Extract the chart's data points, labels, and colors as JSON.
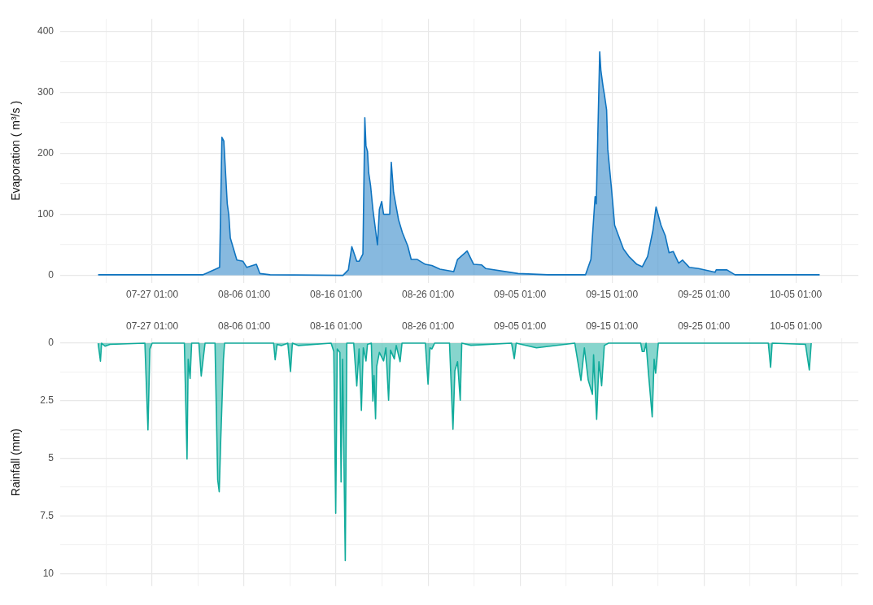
{
  "chart_data": [
    {
      "type": "area",
      "ylabel": "Evaporation ( m³/s )",
      "grid": true,
      "xlim": [
        "--07-17T01:00",
        "--10-11T20:00"
      ],
      "xticks": [
        {
          "value": "--07-22T01:00",
          "label": null
        },
        {
          "value": "--07-27T01:00",
          "label": "07-27 01:00"
        },
        {
          "value": "--08-01T01:00",
          "label": null
        },
        {
          "value": "--08-06T01:00",
          "label": "08-06 01:00"
        },
        {
          "value": "--08-11T01:00",
          "label": null
        },
        {
          "value": "--08-16T01:00",
          "label": "08-16 01:00"
        },
        {
          "value": "--08-21T01:00",
          "label": null
        },
        {
          "value": "--08-26T01:00",
          "label": "08-26 01:00"
        },
        {
          "value": "--08-31T01:00",
          "label": null
        },
        {
          "value": "--09-05T01:00",
          "label": "09-05 01:00"
        },
        {
          "value": "--09-10T01:00",
          "label": null
        },
        {
          "value": "--09-15T01:00",
          "label": "09-15 01:00"
        },
        {
          "value": "--09-20T01:00",
          "label": null
        },
        {
          "value": "--09-25T01:00",
          "label": "09-25 01:00"
        },
        {
          "value": "--09-30T01:00",
          "label": null
        },
        {
          "value": "--10-05T01:00",
          "label": "10-05 01:00"
        },
        {
          "value": "--10-10T01:00",
          "label": null
        }
      ],
      "ylim": [
        -12,
        420
      ],
      "yticks": [
        0,
        {
          "value": 50,
          "label": null
        },
        100,
        {
          "value": 150,
          "label": null
        },
        200,
        {
          "value": 250,
          "label": null
        },
        300,
        {
          "value": 350,
          "label": null
        },
        400
      ],
      "x": [
        "--07-21T04:00",
        "--07-28T04:00",
        "--07-29T12:00",
        "--08-01T14:00",
        "--08-03T02:00",
        "--08-03T09:00",
        "--08-03T15:00",
        "--08-03T20:00",
        "--08-04T05:00",
        "--08-04T09:00",
        "--08-04T13:00",
        "--08-05T06:00",
        "--08-05T22:00",
        "--08-06T08:00",
        "--08-07T09:00",
        "--08-07T18:00",
        "--08-08T21:00",
        "--08-16T19:00",
        "--08-17T09:00",
        "--08-17T18:00",
        "--08-18T07:00",
        "--08-18T13:00",
        "--08-18T23:00",
        "--08-19T04:00",
        "--08-19T07:00",
        "--08-19T11:00",
        "--08-19T14:00",
        "--08-19T19:00",
        "--08-20T01:00",
        "--08-20T13:00",
        "--08-20T18:00",
        "--08-21T00:00",
        "--08-21T05:00",
        "--08-21T21:00",
        "--08-22T01:00",
        "--08-22T07:00",
        "--08-22T20:00",
        "--08-23T06:00",
        "--08-23T20:00",
        "--08-24T05:00",
        "--08-24T21:00",
        "--08-25T18:00",
        "--08-26T11:00",
        "--08-27T08:00",
        "--08-28T20:00",
        "--08-29T06:00",
        "--08-30T07:00",
        "--08-31T00:00",
        "--08-31T21:00",
        "--09-01T08:00",
        "--09-04T20:00",
        "--09-08T02:00",
        "--09-12T04:00",
        "--09-12T18:00",
        "--09-13T05:00",
        "--09-13T08:00",
        "--09-13T17:00",
        "--09-13T20:00",
        "--09-14T02:00",
        "--09-14T05:00",
        "--09-14T11:00",
        "--09-14T14:00",
        "--09-14T23:00",
        "--09-15T08:00",
        "--09-15T18:00",
        "--09-16T07:00",
        "--09-16T21:00",
        "--09-17T18:00",
        "--09-18T08:00",
        "--09-18T22:00",
        "--09-19T12:00",
        "--09-19T20:00",
        "--09-20T09:00",
        "--09-20T20:00",
        "--09-21T06:00",
        "--09-21T17:00",
        "--09-22T07:00",
        "--09-22T17:00",
        "--09-23T11:00",
        "--09-24T11:00",
        "--09-26T06:00",
        "--09-26T09:00",
        "--09-27T13:00",
        "--09-28T10:00",
        "--10-07T15:00"
      ],
      "series": [
        {
          "color": "#0f74c0",
          "values": [
            1,
            1,
            1,
            1,
            11,
            13,
            226,
            220,
            117,
            99,
            61,
            25,
            23,
            13,
            18,
            3,
            1,
            0,
            9,
            47,
            23,
            23,
            35,
            258,
            212,
            203,
            168,
            147,
            108,
            50,
            108,
            121,
            100,
            100,
            185,
            136,
            91,
            70,
            48,
            26,
            26,
            18,
            16,
            10,
            6,
            26,
            40,
            18,
            17,
            11,
            3,
            1,
            1,
            26,
            129,
            117,
            366,
            336,
            308,
            297,
            271,
            207,
            147,
            82,
            65,
            43,
            31,
            18,
            14,
            31,
            74,
            112,
            82,
            65,
            37,
            39,
            20,
            25,
            13,
            11,
            5,
            9,
            9,
            1,
            1
          ]
        }
      ]
    },
    {
      "type": "area",
      "ylabel": "Rainfall (mm)",
      "grid": true,
      "xlim": [
        "--07-17T01:00",
        "--10-11T20:00"
      ],
      "xticks": [
        {
          "value": "--07-22T01:00",
          "label": null
        },
        {
          "value": "--07-27T01:00",
          "label": "07-27 01:00"
        },
        {
          "value": "--08-01T01:00",
          "label": null
        },
        {
          "value": "--08-06T01:00",
          "label": "08-06 01:00"
        },
        {
          "value": "--08-11T01:00",
          "label": null
        },
        {
          "value": "--08-16T01:00",
          "label": "08-16 01:00"
        },
        {
          "value": "--08-21T01:00",
          "label": null
        },
        {
          "value": "--08-26T01:00",
          "label": "08-26 01:00"
        },
        {
          "value": "--08-31T01:00",
          "label": null
        },
        {
          "value": "--09-05T01:00",
          "label": "09-05 01:00"
        },
        {
          "value": "--09-10T01:00",
          "label": null
        },
        {
          "value": "--09-15T01:00",
          "label": "09-15 01:00"
        },
        {
          "value": "--09-20T01:00",
          "label": null
        },
        {
          "value": "--09-25T01:00",
          "label": "09-25 01:00"
        },
        {
          "value": "--09-30T01:00",
          "label": null
        },
        {
          "value": "--10-05T01:00",
          "label": "10-05 01:00"
        },
        {
          "value": "--10-10T01:00",
          "label": null
        }
      ],
      "ylim": [
        10.55,
        -0.2
      ],
      "yticks": [
        0,
        {
          "value": 1.25,
          "label": null
        },
        2.5,
        {
          "value": 3.75,
          "label": null
        },
        5,
        {
          "value": 6.25,
          "label": null
        },
        7.5,
        {
          "value": 8.75,
          "label": null
        },
        10
      ],
      "x": [
        "--07-21T04:00",
        "--07-21T10:00",
        "--07-21T13:00",
        "--07-21T22:00",
        "--07-22T11:00",
        "--07-26T06:00",
        "--07-26T14:00",
        "--07-26T19:00",
        "--07-27T01:00",
        "--07-30T13:00",
        "--07-30T20:00",
        "--07-30T23:00",
        "--07-31T04:00",
        "--07-31T08:00",
        "--08-01T03:00",
        "--08-01T09:00",
        "--08-01T14:00",
        "--08-01T19:00",
        "--08-02T21:00",
        "--08-03T04:00",
        "--08-03T08:00",
        "--08-03T12:00",
        "--08-03T19:00",
        "--08-03T22:00",
        "--08-09T06:00",
        "--08-09T10:00",
        "--08-09T15:00",
        "--08-10T02:00",
        "--08-10T19:00",
        "--08-11T02:00",
        "--08-11T07:00",
        "--08-11T23:00",
        "--08-15T12:00",
        "--08-15T19:00",
        "--08-16T00:00",
        "--08-16T04:00",
        "--08-16T11:00",
        "--08-16T14:00",
        "--08-16T18:00",
        "--08-17T01:00",
        "--08-17T05:00",
        "--08-17T23:00",
        "--08-18T07:00",
        "--08-18T13:00",
        "--08-18T19:00",
        "--08-19T00:00",
        "--08-19T07:00",
        "--08-19T11:00",
        "--08-19T21:00",
        "--08-20T01:00",
        "--08-20T04:00",
        "--08-20T08:00",
        "--08-20T11:00",
        "--08-20T18:00",
        "--08-21T05:00",
        "--08-21T11:00",
        "--08-21T18:00",
        "--08-21T23:00",
        "--08-22T09:00",
        "--08-22T14:00",
        "--08-23T00:00",
        "--08-23T05:00",
        "--08-25T18:00",
        "--08-26T01:00",
        "--08-26T06:00",
        "--08-26T11:00",
        "--08-26T18:00",
        "--08-28T09:00",
        "--08-28T18:00",
        "--08-28T23:00",
        "--08-29T06:00",
        "--08-29T13:00",
        "--08-29T17:00",
        "--08-30T17:00",
        "--09-04T03:00",
        "--09-04T10:00",
        "--09-04T15:00",
        "--09-06T20:00",
        "--09-11T00:00",
        "--09-11T16:00",
        "--09-12T01:00",
        "--09-12T11:00",
        "--09-12T22:00",
        "--09-13T01:00",
        "--09-13T09:00",
        "--09-13T15:00",
        "--09-13T22:00",
        "--09-14T05:00",
        "--09-14T16:00",
        "--09-18T04:00",
        "--09-18T08:00",
        "--09-18T13:00",
        "--09-18T18:00",
        "--09-19T01:00",
        "--09-19T10:00",
        "--09-19T15:00",
        "--09-19T19:00",
        "--09-20T02:00",
        "--10-02T01:00",
        "--10-02T07:00",
        "--10-02T11:00",
        "--10-06T02:00",
        "--10-06T12:00",
        "--10-06T17:00"
      ],
      "series": [
        {
          "color": "#10ab9b",
          "values": [
            0,
            0.78,
            0,
            0.13,
            0.05,
            0,
            3.77,
            0.25,
            0,
            0,
            5.03,
            0.7,
            1.53,
            0,
            0,
            1.43,
            0.7,
            0,
            0,
            5.93,
            6.45,
            4.18,
            0.7,
            0,
            0,
            0.72,
            0.05,
            0.1,
            0,
            1.23,
            0,
            0.1,
            0,
            0.36,
            7.39,
            0.25,
            0.4,
            6.03,
            0.7,
            9.44,
            0,
            0,
            1.86,
            0.25,
            2.92,
            0.2,
            0.77,
            0.05,
            0,
            2.51,
            1.4,
            3.28,
            1,
            0.4,
            0.77,
            0.2,
            2.48,
            0.3,
            0.68,
            0.1,
            0.8,
            0,
            0,
            1.78,
            0.2,
            0.25,
            0,
            0,
            3.74,
            1.2,
            0.8,
            2.48,
            0,
            0.09,
            0,
            0.67,
            0,
            0.2,
            0,
            1.62,
            0.2,
            1.6,
            2.22,
            0.5,
            3.31,
            0.8,
            1.85,
            0.1,
            0,
            0,
            0.36,
            0.36,
            0,
            1.45,
            3.2,
            0.7,
            1.3,
            0,
            0,
            1.05,
            0,
            0.05,
            1.16,
            0
          ]
        }
      ]
    }
  ]
}
